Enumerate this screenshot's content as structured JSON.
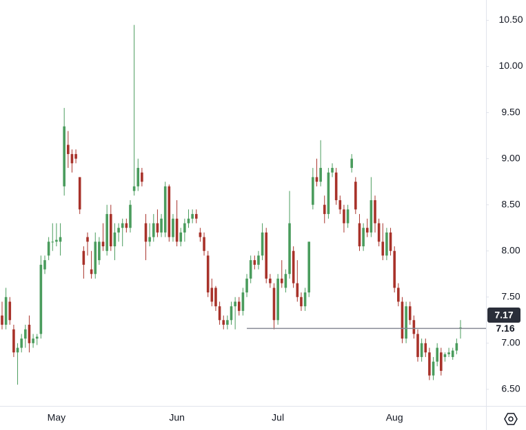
{
  "chart_data": {
    "type": "candlestick",
    "categories": [
      null,
      null,
      null,
      null,
      null,
      null,
      null,
      null,
      null,
      null,
      null,
      null,
      null,
      null,
      "May",
      null,
      null,
      null,
      null,
      null,
      null,
      null,
      null,
      null,
      null,
      null,
      null,
      null,
      null,
      null,
      null,
      null,
      null,
      null,
      null,
      null,
      null,
      null,
      null,
      null,
      null,
      null,
      null,
      null,
      null,
      "Jun",
      null,
      null,
      null,
      null,
      null,
      null,
      null,
      null,
      null,
      null,
      null,
      null,
      null,
      null,
      null,
      null,
      null,
      null,
      null,
      null,
      null,
      null,
      null,
      null,
      null,
      "Jul",
      null,
      null,
      null,
      null,
      null,
      null,
      null,
      null,
      null,
      null,
      null,
      null,
      null,
      null,
      null,
      null,
      null,
      null,
      null,
      null,
      null,
      null,
      null,
      null,
      null,
      null,
      null,
      null,
      null,
      "Aug",
      null,
      null,
      null,
      null,
      null,
      null,
      null,
      null,
      null,
      null,
      null,
      null,
      null,
      null,
      null,
      null,
      null
    ],
    "open": [
      7.3,
      7.2,
      7.45,
      7.15,
      6.9,
      6.95,
      7.05,
      7.2,
      7.0,
      7.05,
      7.1,
      7.8,
      7.95,
      8.1,
      8.1,
      8.1,
      8.7,
      9.15,
      9.05,
      9.05,
      8.8,
      8.0,
      8.15,
      7.8,
      7.75,
      7.9,
      8.1,
      8.0,
      8.4,
      8.05,
      8.2,
      8.25,
      8.3,
      8.25,
      8.65,
      8.7,
      8.85,
      8.3,
      8.1,
      8.15,
      8.3,
      8.2,
      8.2,
      8.7,
      8.15,
      8.35,
      8.1,
      8.2,
      8.3,
      8.35,
      8.4,
      8.2,
      8.15,
      7.95,
      7.6,
      7.6,
      7.4,
      7.25,
      7.2,
      7.25,
      7.4,
      7.45,
      7.35,
      7.55,
      7.7,
      7.9,
      7.85,
      7.95,
      8.2,
      7.7,
      7.6,
      7.25,
      7.7,
      7.6,
      7.75,
      8.0,
      7.65,
      7.5,
      7.4,
      7.55,
      8.5,
      8.8,
      8.75,
      8.5,
      8.4,
      8.85,
      8.85,
      8.55,
      8.45,
      8.3,
      8.9,
      8.75,
      8.3,
      8.05,
      8.25,
      8.2,
      8.55,
      8.3,
      8.1,
      7.95,
      8.2,
      8.0,
      7.6,
      7.45,
      7.05,
      7.4,
      7.25,
      7.1,
      6.85,
      7.0,
      6.9,
      6.65,
      6.8,
      6.9,
      6.85,
      6.88,
      6.85,
      6.92,
      7.17
    ],
    "high": [
      7.45,
      7.6,
      7.5,
      7.2,
      7.0,
      7.1,
      7.2,
      7.3,
      7.1,
      7.1,
      7.95,
      7.95,
      8.15,
      8.3,
      8.3,
      8.3,
      9.55,
      9.3,
      9.1,
      9.1,
      8.8,
      8.05,
      8.2,
      8.0,
      8.2,
      8.15,
      8.3,
      8.5,
      8.5,
      8.3,
      8.3,
      8.35,
      8.35,
      8.55,
      10.45,
      9.0,
      8.9,
      8.4,
      8.3,
      8.4,
      8.45,
      8.4,
      8.75,
      8.72,
      8.4,
      8.55,
      8.25,
      8.35,
      8.45,
      8.45,
      8.45,
      8.25,
      8.2,
      8.0,
      7.7,
      7.62,
      7.45,
      7.3,
      7.3,
      7.45,
      7.5,
      7.5,
      7.6,
      7.75,
      7.95,
      7.95,
      8.0,
      8.3,
      8.25,
      7.75,
      7.65,
      7.75,
      7.9,
      7.8,
      8.65,
      8.05,
      7.9,
      7.55,
      7.6,
      8.1,
      8.9,
      9.0,
      9.2,
      8.6,
      8.9,
      8.95,
      8.9,
      8.6,
      8.5,
      8.5,
      9.05,
      8.8,
      8.4,
      8.3,
      8.35,
      8.8,
      8.6,
      8.35,
      8.3,
      8.25,
      8.25,
      8.05,
      7.65,
      7.5,
      7.45,
      7.45,
      7.3,
      7.15,
      7.05,
      7.05,
      6.95,
      6.85,
      7.0,
      6.95,
      6.9,
      6.95,
      6.95,
      7.05,
      7.25
    ],
    "low": [
      7.15,
      7.15,
      7.2,
      6.85,
      6.55,
      6.9,
      6.95,
      6.9,
      6.95,
      6.98,
      7.05,
      7.75,
      7.9,
      8.0,
      8.05,
      7.95,
      8.6,
      8.9,
      8.85,
      8.95,
      8.4,
      7.7,
      7.95,
      7.7,
      7.7,
      7.85,
      8.0,
      7.95,
      8.0,
      7.9,
      8.1,
      8.05,
      8.2,
      8.2,
      8.6,
      8.65,
      8.7,
      7.9,
      8.05,
      8.1,
      8.15,
      8.15,
      8.15,
      8.1,
      8.1,
      8.05,
      8.05,
      8.1,
      8.25,
      8.3,
      8.3,
      8.1,
      7.95,
      7.5,
      7.4,
      7.35,
      7.2,
      7.15,
      7.15,
      7.2,
      7.15,
      7.3,
      7.3,
      7.5,
      7.65,
      7.8,
      7.8,
      7.9,
      7.65,
      7.6,
      7.15,
      7.2,
      7.6,
      7.55,
      7.7,
      7.6,
      7.45,
      7.35,
      7.35,
      7.5,
      8.45,
      8.7,
      8.7,
      8.3,
      8.35,
      8.8,
      8.5,
      8.4,
      8.2,
      8.25,
      8.85,
      8.4,
      8.0,
      8.0,
      8.15,
      8.15,
      8.2,
      8.05,
      7.9,
      7.9,
      7.95,
      7.55,
      7.4,
      7.0,
      7.0,
      7.2,
      7.05,
      6.8,
      6.8,
      6.85,
      6.6,
      6.6,
      6.75,
      6.65,
      6.8,
      6.85,
      6.82,
      6.88,
      7.05
    ],
    "close": [
      7.2,
      7.5,
      7.25,
      6.9,
      6.95,
      7.05,
      7.15,
      7.0,
      7.05,
      7.07,
      7.85,
      7.9,
      8.1,
      8.1,
      8.12,
      8.15,
      9.35,
      9.05,
      8.95,
      9.0,
      8.45,
      7.85,
      8.1,
      7.75,
      8.1,
      8.1,
      8.05,
      8.4,
      8.05,
      8.2,
      8.25,
      8.3,
      8.25,
      8.5,
      8.7,
      8.9,
      8.75,
      8.1,
      8.15,
      8.3,
      8.2,
      8.35,
      8.7,
      8.15,
      8.35,
      8.1,
      8.2,
      8.3,
      8.35,
      8.4,
      8.35,
      8.15,
      8.0,
      7.55,
      7.45,
      7.4,
      7.25,
      7.2,
      7.25,
      7.4,
      7.45,
      7.35,
      7.55,
      7.7,
      7.9,
      7.85,
      7.95,
      8.2,
      7.7,
      7.65,
      7.25,
      7.7,
      7.65,
      7.75,
      8.3,
      7.65,
      7.5,
      7.4,
      7.55,
      8.1,
      8.8,
      8.75,
      8.9,
      8.4,
      8.85,
      8.9,
      8.55,
      8.45,
      8.3,
      8.45,
      9.0,
      8.45,
      8.05,
      8.25,
      8.2,
      8.55,
      8.3,
      8.1,
      7.95,
      8.2,
      8.0,
      7.6,
      7.45,
      7.05,
      7.4,
      7.25,
      7.1,
      6.85,
      7.0,
      6.9,
      6.65,
      6.8,
      6.95,
      6.7,
      6.88,
      6.9,
      6.92,
      7.0,
      7.17
    ],
    "last_price_label": "7.17",
    "hline": {
      "value": 7.16,
      "label": "7.16"
    },
    "up_color": "#4a9c5d",
    "down_color": "#a8322a",
    "ylim": [
      6.32,
      10.72
    ],
    "yticks": [
      {
        "value": 6.5,
        "label": "6.50"
      },
      {
        "value": 7,
        "label": "7.00"
      },
      {
        "value": 7.5,
        "label": "7.50"
      },
      {
        "value": 8,
        "label": "8.00"
      },
      {
        "value": 8.5,
        "label": "8.50"
      },
      {
        "value": 9,
        "label": "9.00"
      },
      {
        "value": 9.5,
        "label": "9.50"
      },
      {
        "value": 10,
        "label": "10.00"
      },
      {
        "value": 10.5,
        "label": "10.50"
      }
    ],
    "grid": false
  }
}
